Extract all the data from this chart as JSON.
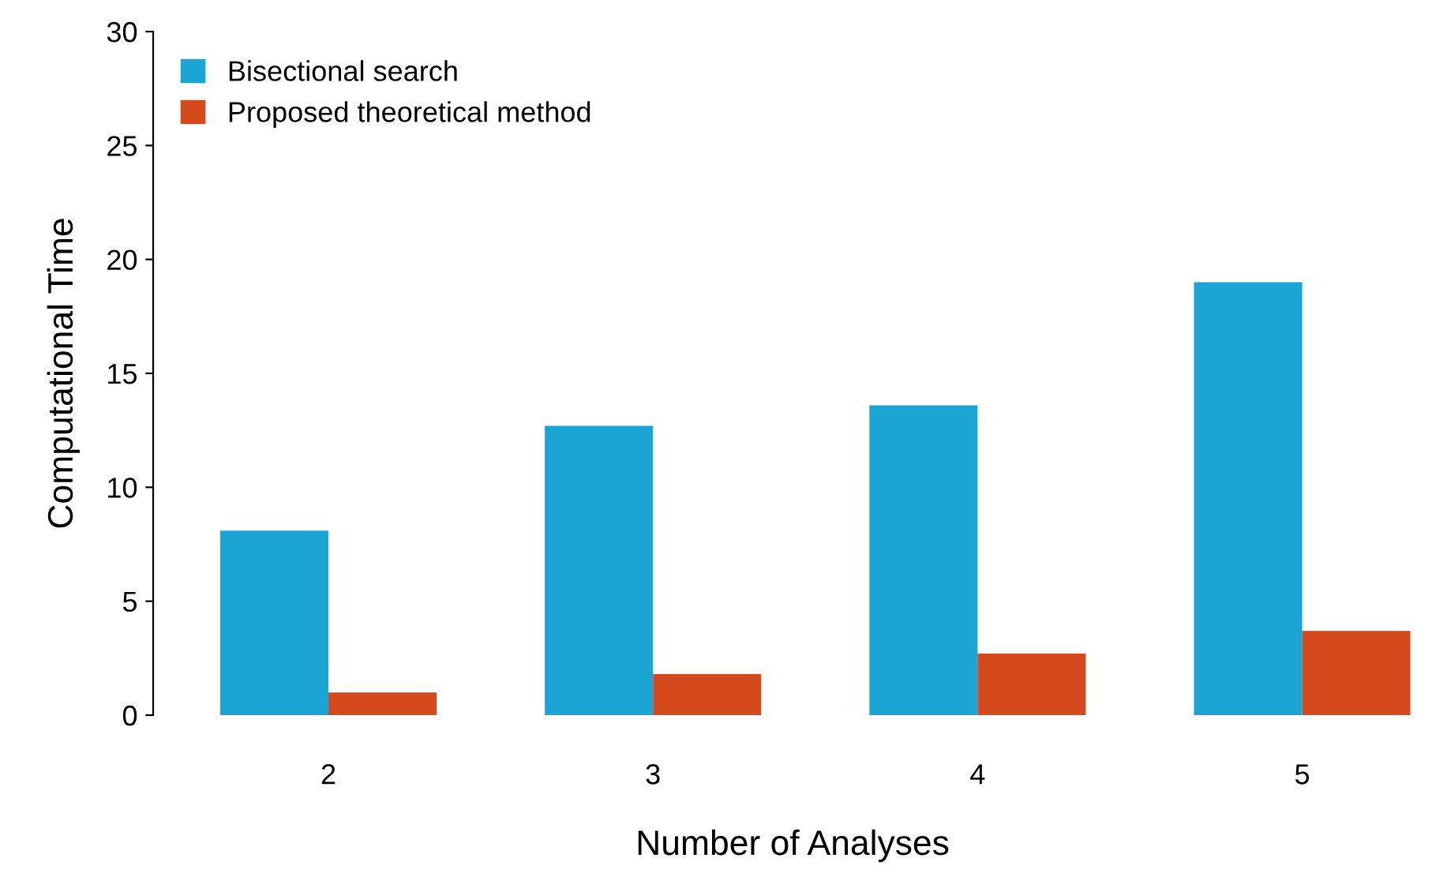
{
  "chart_data": {
    "type": "bar",
    "xlabel": "Number of Analyses",
    "ylabel": "Computational Time",
    "categories": [
      "2",
      "3",
      "4",
      "5"
    ],
    "series": [
      {
        "name": "Bisectional search",
        "color": "#1aa5d5",
        "values": [
          8.1,
          12.7,
          13.6,
          19.0
        ]
      },
      {
        "name": "Proposed theoretical method",
        "color": "#d44a1c",
        "values": [
          1.0,
          1.8,
          2.7,
          3.7
        ]
      }
    ],
    "ylim": [
      0,
      30
    ],
    "yticks": [
      0,
      5,
      10,
      15,
      20,
      25,
      30
    ],
    "grid": false,
    "legend": "top left"
  }
}
